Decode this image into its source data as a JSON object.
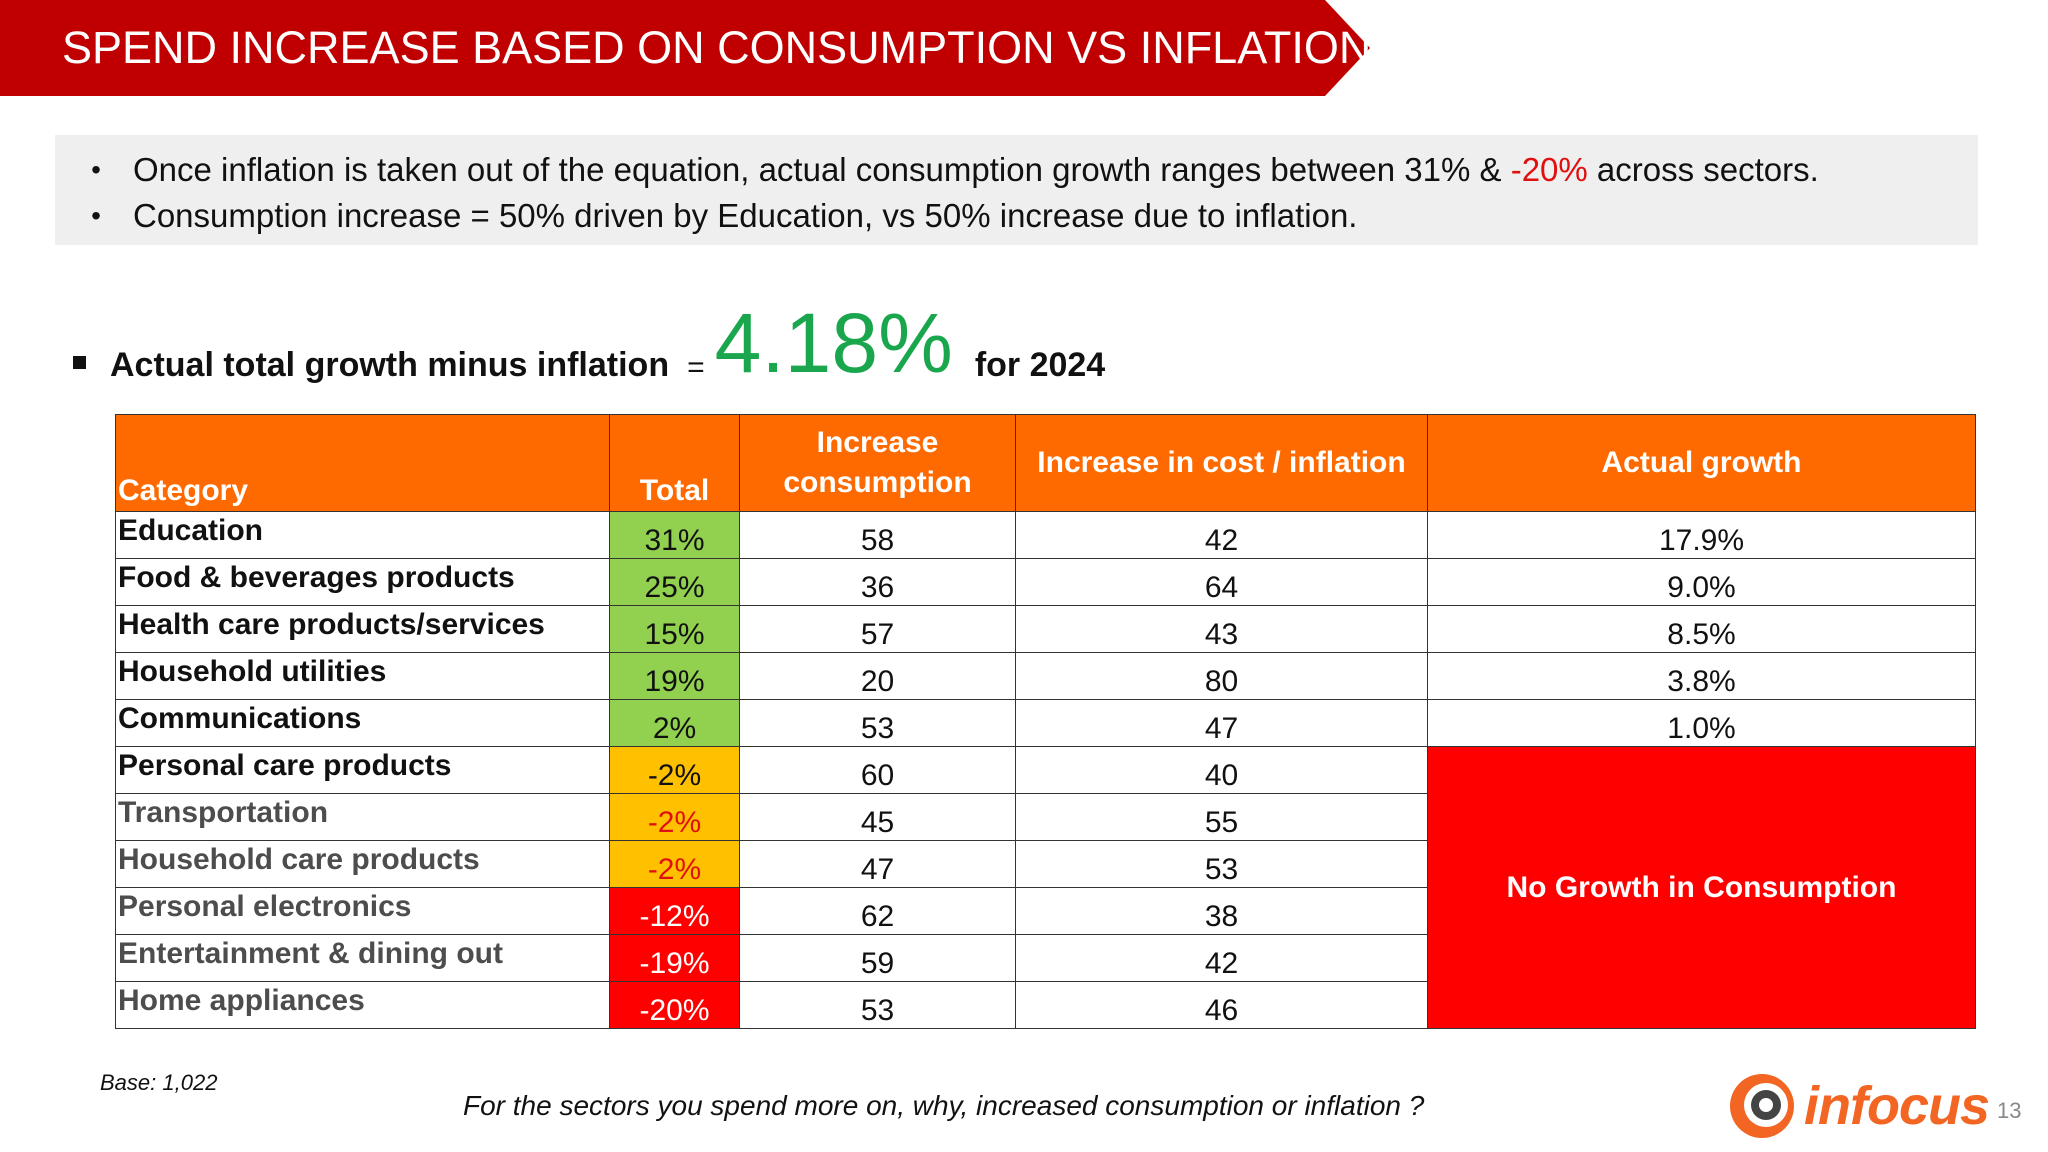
{
  "title": "SPEND INCREASE BASED ON CONSUMPTION VS INFLATION",
  "bullets": {
    "b1_before": "Once inflation is taken out of the equation, actual consumption growth ranges between 31% & ",
    "b1_highlight": "-20%",
    "b1_after": " across sectors.",
    "b2": "Consumption increase = 50% driven by Education, vs 50% increase due to inflation."
  },
  "summary": {
    "label": "Actual total growth minus inflation",
    "equals": "=",
    "value": "4.18%",
    "suffix": "for 2024"
  },
  "table": {
    "headers": {
      "category": "Category",
      "total": "Total",
      "increase_consumption": "Increase consumption",
      "increase_cost": "Increase in cost / inflation",
      "actual_growth": "Actual growth"
    },
    "rows": [
      {
        "category": "Education",
        "total": "31%",
        "consumption": "58",
        "cost": "42",
        "growth": "17.9%"
      },
      {
        "category": "Food & beverages products",
        "total": "25%",
        "consumption": "36",
        "cost": "64",
        "growth": "9.0%"
      },
      {
        "category": "Health care products/services",
        "total": "15%",
        "consumption": "57",
        "cost": "43",
        "growth": "8.5%"
      },
      {
        "category": "Household utilities",
        "total": "19%",
        "consumption": "20",
        "cost": "80",
        "growth": "3.8%"
      },
      {
        "category": "Communications",
        "total": "2%",
        "consumption": "53",
        "cost": "47",
        "growth": "1.0%"
      },
      {
        "category": "Personal care products",
        "total": "-2%",
        "consumption": "60",
        "cost": "40"
      },
      {
        "category": "Transportation",
        "total": "-2%",
        "consumption": "45",
        "cost": "55"
      },
      {
        "category": "Household care products",
        "total": "-2%",
        "consumption": "47",
        "cost": "53"
      },
      {
        "category": "Personal electronics",
        "total": "-12%",
        "consumption": "62",
        "cost": "38"
      },
      {
        "category": "Entertainment & dining out",
        "total": "-19%",
        "consumption": "59",
        "cost": "42"
      },
      {
        "category": "Home appliances",
        "total": "-20%",
        "consumption": "53",
        "cost": "46"
      }
    ],
    "no_growth_label": "No Growth  in Consumption"
  },
  "colors": {
    "banner": "#c00000",
    "header": "#ff6a00",
    "positive": "#92d050",
    "flat": "#ffc000",
    "negative": "#ff0000",
    "highlight_value": "#1aa64d"
  },
  "footer": {
    "base": "Base: 1,022",
    "question": "For the sectors you spend more on, why, increased consumption or inflation ?",
    "logo_text": "infocus",
    "page_number": "13"
  }
}
